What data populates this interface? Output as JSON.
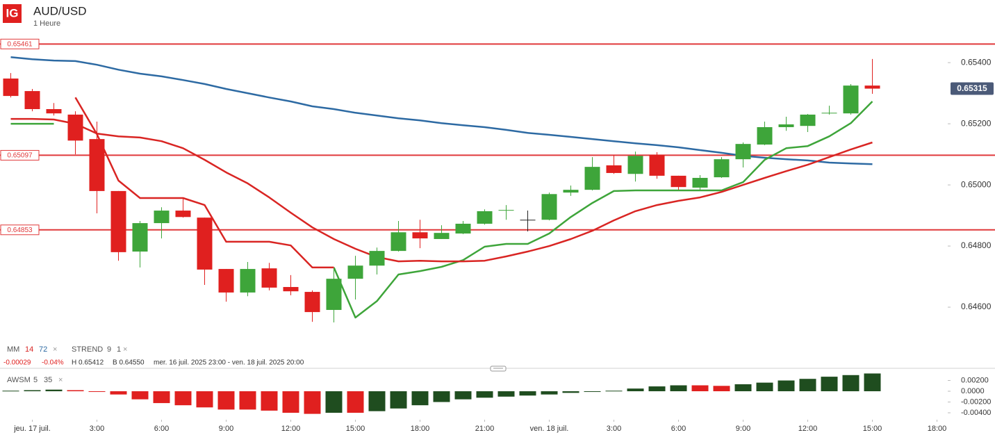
{
  "header": {
    "logo": "IG",
    "symbol": "AUD/USD",
    "interval": "1 Heure"
  },
  "legend": {
    "mm_label": "MM",
    "strend_label": "STREND",
    "strend_params": [
      "9",
      "1"
    ],
    "close": "×"
  },
  "info": {
    "change": "-0.00029",
    "change_pct": "-0.04%",
    "high": "H 0.65412",
    "low": "B 0.64550",
    "range": "mer. 16 juil. 2025 23:00 - ven. 18 juil. 2025 20:00"
  },
  "chart_data": [
    {
      "type": "candlestick",
      "xlim": [
        -0.5,
        43.5
      ],
      "xticks": [
        {
          "value": 1,
          "label": "jeu. 17 juil."
        },
        {
          "value": 4,
          "label": "3:00"
        },
        {
          "value": 7,
          "label": "6:00"
        },
        {
          "value": 10,
          "label": "9:00"
        },
        {
          "value": 13,
          "label": "12:00"
        },
        {
          "value": 16,
          "label": "15:00"
        },
        {
          "value": 19,
          "label": "18:00"
        },
        {
          "value": 22,
          "label": "21:00"
        },
        {
          "value": 25,
          "label": "ven. 18 juil."
        },
        {
          "value": 28,
          "label": "3:00"
        },
        {
          "value": 31,
          "label": "6:00"
        },
        {
          "value": 34,
          "label": "9:00"
        },
        {
          "value": 37,
          "label": "12:00"
        },
        {
          "value": 40,
          "label": "15:00"
        },
        {
          "value": 43,
          "label": "18:00"
        }
      ],
      "ylim": [
        0.64491,
        0.65514
      ],
      "yticks": [
        {
          "value": 0.654,
          "label": "0.65400"
        },
        {
          "value": 0.652,
          "label": "0.65200"
        },
        {
          "value": 0.65,
          "label": "0.65000"
        },
        {
          "value": 0.648,
          "label": "0.64800"
        },
        {
          "value": 0.646,
          "label": "0.64600"
        }
      ],
      "up_color": "#3ea53a",
      "down_color": "#e0201f",
      "doji_color": "#222222",
      "open": [
        0.65348,
        0.65307,
        0.65248,
        0.6523,
        0.6515,
        0.6498,
        0.64782,
        0.64875,
        0.64916,
        0.64893,
        0.64725,
        0.64648,
        0.64727,
        0.64666,
        0.6465,
        0.64591,
        0.64693,
        0.64736,
        0.64784,
        0.64845,
        0.64823,
        0.64841,
        0.64873,
        0.64916,
        0.64886,
        0.64886,
        0.64975,
        0.64984,
        0.65064,
        0.65036,
        0.65098,
        0.6503,
        0.64991,
        0.65025,
        0.65084,
        0.65132,
        0.65189,
        0.65193,
        0.65234,
        0.65234,
        0.65325
      ],
      "high": [
        0.65366,
        0.65314,
        0.65268,
        0.65241,
        0.65207,
        0.6498,
        0.64882,
        0.64927,
        0.64959,
        0.64893,
        0.64725,
        0.64748,
        0.64745,
        0.64705,
        0.64655,
        0.64725,
        0.64768,
        0.64795,
        0.64882,
        0.64886,
        0.64868,
        0.64882,
        0.6492,
        0.64934,
        0.64916,
        0.64975,
        0.64998,
        0.65091,
        0.65098,
        0.65109,
        0.65107,
        0.6503,
        0.65032,
        0.65091,
        0.65139,
        0.65207,
        0.65223,
        0.65232,
        0.65259,
        0.6533,
        0.65412
      ],
      "low": [
        0.65286,
        0.65241,
        0.65227,
        0.651,
        0.64907,
        0.64752,
        0.6473,
        0.64825,
        0.64893,
        0.64673,
        0.64618,
        0.64636,
        0.64655,
        0.64639,
        0.64552,
        0.6455,
        0.64625,
        0.64707,
        0.64782,
        0.64793,
        0.64823,
        0.64839,
        0.6487,
        0.64886,
        0.64848,
        0.64884,
        0.64964,
        0.64982,
        0.65036,
        0.65011,
        0.6502,
        0.64984,
        0.6498,
        0.65023,
        0.65057,
        0.6513,
        0.65177,
        0.65173,
        0.6523,
        0.6523,
        0.65298
      ],
      "close": [
        0.65291,
        0.65248,
        0.65234,
        0.65145,
        0.6498,
        0.6478,
        0.64875,
        0.64916,
        0.64895,
        0.64723,
        0.64648,
        0.64725,
        0.64664,
        0.64652,
        0.64584,
        0.64693,
        0.64736,
        0.64784,
        0.64845,
        0.64825,
        0.64843,
        0.64873,
        0.64914,
        0.64918,
        0.64886,
        0.6497,
        0.64984,
        0.65059,
        0.65039,
        0.65095,
        0.6503,
        0.64993,
        0.65023,
        0.65084,
        0.65134,
        0.65189,
        0.65198,
        0.6523,
        0.65236,
        0.65325,
        0.65315
      ],
      "series": [
        {
          "name": "14",
          "color": "#d92523",
          "values": [
            0.65216,
            0.65216,
            0.65214,
            0.652,
            0.65168,
            0.65159,
            0.65155,
            0.65143,
            0.6512,
            0.65082,
            0.65041,
            0.65005,
            0.64959,
            0.64909,
            0.64861,
            0.64823,
            0.64791,
            0.64764,
            0.6475,
            0.64752,
            0.6475,
            0.6475,
            0.64752,
            0.64766,
            0.64782,
            0.648,
            0.64823,
            0.6485,
            0.64884,
            0.64914,
            0.64934,
            0.64948,
            0.64959,
            0.64977,
            0.65,
            0.65023,
            0.65045,
            0.65066,
            0.65091,
            0.65116,
            0.65139
          ]
        },
        {
          "name": "72",
          "color": "#2d6aa3",
          "values": [
            0.65418,
            0.65411,
            0.65407,
            0.65405,
            0.65393,
            0.65377,
            0.65364,
            0.65355,
            0.65343,
            0.6533,
            0.65314,
            0.653,
            0.65286,
            0.65273,
            0.65257,
            0.65248,
            0.65236,
            0.65227,
            0.65218,
            0.65211,
            0.65202,
            0.65195,
            0.65189,
            0.6518,
            0.6517,
            0.65164,
            0.65157,
            0.6515,
            0.65143,
            0.65136,
            0.6513,
            0.65123,
            0.65114,
            0.65105,
            0.65095,
            0.65089,
            0.65084,
            0.6508,
            0.65073,
            0.6507,
            0.65068
          ]
        }
      ],
      "supertrend": [
        {
          "color": "#3ea53a",
          "values": [
            0.652,
            0.652,
            0.652,
            null,
            null,
            null,
            null,
            null,
            null,
            null,
            null,
            null,
            null,
            null,
            null,
            0.6473,
            0.64566,
            0.6462,
            0.64707,
            0.64718,
            0.64732,
            0.64754,
            0.64798,
            0.64807,
            0.64807,
            0.64841,
            0.64895,
            0.64941,
            0.6498,
            0.64982,
            0.64982,
            0.64982,
            0.64982,
            0.64982,
            0.65009,
            0.65082,
            0.6512,
            0.65127,
            0.65159,
            0.65202,
            0.65273
          ]
        },
        {
          "color": "#d92523",
          "values": [
            null,
            null,
            null,
            0.65286,
            0.65166,
            0.65014,
            0.64957,
            0.64957,
            0.64957,
            0.64934,
            0.64814,
            0.64814,
            0.64814,
            0.64802,
            0.6473,
            0.6473,
            null,
            null,
            null,
            null,
            null,
            null,
            null,
            null,
            null,
            null,
            null,
            null,
            null,
            null,
            null,
            null,
            null,
            null,
            null,
            null,
            null,
            null,
            null,
            null,
            null
          ]
        }
      ],
      "levels": [
        0.65461,
        0.65097,
        0.64853
      ],
      "levels_color": "#e0383a",
      "last_price": 0.65315,
      "last_price_color": "#4b5a78"
    },
    {
      "type": "bar",
      "title": "AWSM",
      "params": [
        "5",
        "35"
      ],
      "xlim": [
        -0.5,
        43.5
      ],
      "ylim": [
        -0.00477,
        0.00323
      ],
      "yticks": [
        {
          "value": 0.002,
          "label": "0.00200"
        },
        {
          "value": 0,
          "label": "0.0000"
        },
        {
          "value": -0.002,
          "label": "-0.00200"
        },
        {
          "value": -0.004,
          "label": "-0.00400"
        }
      ],
      "up_color": "#1f4d1f",
      "down_color": "#e0201f",
      "values": [
        0.0001,
        0.0002,
        0.0003,
        0.0002,
        -0.0001,
        -0.0006,
        -0.0015,
        -0.0022,
        -0.0026,
        -0.003,
        -0.0034,
        -0.0034,
        -0.0036,
        -0.004,
        -0.0042,
        -0.004,
        -0.004,
        -0.0037,
        -0.0032,
        -0.0026,
        -0.002,
        -0.0015,
        -0.0012,
        -0.001,
        -0.0008,
        -0.0006,
        -0.0003,
        -0.0001,
        0.0001,
        0.0005,
        0.0009,
        0.0011,
        0.0011,
        0.001,
        0.0013,
        0.0016,
        0.002,
        0.0023,
        0.0027,
        0.003,
        0.0033
      ]
    }
  ]
}
